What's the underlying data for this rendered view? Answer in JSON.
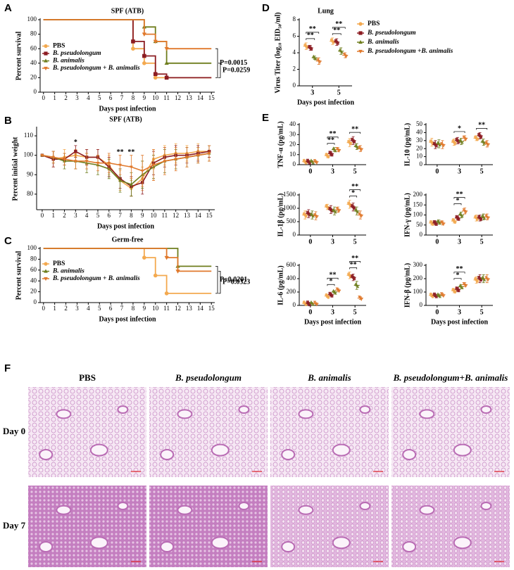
{
  "panel_labels": [
    "A",
    "B",
    "C",
    "D",
    "E",
    "F"
  ],
  "chart_data": [
    {
      "type": "step",
      "title": "SPF (ATB)",
      "xlabel": "Days post infection",
      "ylabel": "Percent survival",
      "x": [
        0,
        8,
        9,
        10,
        11,
        15
      ],
      "xlim": [
        -0.3,
        15.3
      ],
      "xticks": [
        0,
        1,
        2,
        3,
        4,
        5,
        6,
        7,
        8,
        9,
        10,
        11,
        12,
        13,
        14,
        15
      ],
      "ylim": [
        0,
        100
      ],
      "yticks": [
        0,
        20,
        40,
        60,
        80,
        100
      ],
      "legend": "lower left",
      "series": [
        {
          "name": "PBS",
          "color": "#f3a94f",
          "marker": "circle",
          "values": [
            100,
            60,
            40,
            20,
            20,
            20
          ]
        },
        {
          "name": "B. pseudolongum",
          "color": "#8c1c22",
          "marker": "square",
          "values": [
            100,
            70,
            50,
            25,
            20,
            20
          ]
        },
        {
          "name": "B. animalis",
          "color": "#6f7e1e",
          "marker": "triangle",
          "values": [
            100,
            100,
            90,
            70,
            40,
            40
          ]
        },
        {
          "name": "B. pseudolongum + B. animalis",
          "color": "#e0792c",
          "marker": "triangle-down",
          "values": [
            100,
            100,
            80,
            70,
            60,
            60
          ]
        }
      ],
      "p_values": [
        "P=0.0015",
        "P=0.0259"
      ]
    },
    {
      "type": "line",
      "title": "SPF (ATB)",
      "xlabel": "Days post infection",
      "ylabel": "Percent initial weight",
      "x": [
        0,
        1,
        2,
        3,
        4,
        5,
        6,
        7,
        8,
        9,
        10,
        11,
        12,
        13,
        14,
        15
      ],
      "xlim": [
        -0.5,
        15.5
      ],
      "xticks": [
        0,
        1,
        2,
        3,
        4,
        5,
        6,
        7,
        8,
        9,
        10,
        11,
        12,
        13,
        14,
        15
      ],
      "ylim": [
        72,
        114
      ],
      "yticks": [
        80,
        90,
        100,
        110
      ],
      "series": [
        {
          "name": "PBS",
          "color": "#f3a94f",
          "marker": "circle",
          "values": [
            100,
            98,
            99,
            100,
            99,
            99,
            95,
            87,
            83,
            88,
            98,
            100,
            101,
            101,
            102,
            102
          ],
          "errors": [
            0,
            4,
            4,
            3,
            4,
            4,
            5,
            5,
            4,
            6,
            5,
            5,
            5,
            4,
            4,
            3
          ]
        },
        {
          "name": "B. pseudolongum",
          "color": "#8c1c22",
          "marker": "square",
          "values": [
            100,
            98,
            98,
            102,
            99,
            99,
            94,
            88,
            84,
            86,
            96,
            99,
            100,
            100,
            101,
            102
          ],
          "errors": [
            0,
            4,
            3,
            3,
            4,
            4,
            5,
            5,
            5,
            6,
            6,
            5,
            5,
            4,
            4,
            3
          ]
        },
        {
          "name": "B. animalis",
          "color": "#6f7e1e",
          "marker": "triangle",
          "values": [
            100,
            99,
            97,
            97,
            96,
            95,
            93,
            87,
            85,
            90,
            94,
            97,
            98,
            99,
            100,
            101
          ],
          "errors": [
            0,
            3,
            4,
            4,
            5,
            5,
            5,
            6,
            6,
            7,
            6,
            6,
            5,
            5,
            4,
            4
          ]
        },
        {
          "name": "B. pseudolongum + B. animalis",
          "color": "#e0792c",
          "marker": "triangle-down",
          "values": [
            100,
            99,
            98,
            97,
            97,
            96,
            96,
            95,
            94,
            92,
            95,
            97,
            98,
            99,
            100,
            101
          ],
          "errors": [
            0,
            3,
            3,
            4,
            4,
            4,
            5,
            5,
            6,
            8,
            8,
            7,
            6,
            5,
            4,
            4
          ]
        }
      ],
      "annotations": [
        {
          "text": "*",
          "x": 3
        },
        {
          "text": "**",
          "x": 7
        },
        {
          "text": "**",
          "x": 8
        }
      ]
    },
    {
      "type": "step",
      "title": "Germ-free",
      "xlabel": "Days post infection",
      "ylabel": "Percent survival",
      "x": [
        0,
        9,
        10,
        11,
        12,
        15
      ],
      "xlim": [
        -0.3,
        15.3
      ],
      "xticks": [
        0,
        1,
        2,
        3,
        4,
        5,
        6,
        7,
        8,
        9,
        10,
        11,
        12,
        13,
        14,
        15
      ],
      "ylim": [
        0,
        100
      ],
      "yticks": [
        0,
        20,
        40,
        60,
        80,
        100
      ],
      "legend": "lower left",
      "series": [
        {
          "name": "PBS",
          "color": "#f3a94f",
          "marker": "circle",
          "values": [
            100,
            83,
            50,
            17,
            17,
            17
          ]
        },
        {
          "name": "B. animalis",
          "color": "#6f7e1e",
          "marker": "triangle",
          "values": [
            100,
            100,
            100,
            100,
            67,
            67
          ]
        },
        {
          "name": "B. pseudolongum + B. animalis",
          "color": "#e0792c",
          "marker": "triangle-down",
          "values": [
            100,
            100,
            100,
            83,
            58,
            58
          ]
        }
      ],
      "p_values": [
        "P=0.0201",
        "P=0.0323"
      ]
    },
    {
      "type": "dot",
      "title": "Lung",
      "xlabel": "Days post infection",
      "ylabel": "Virus Titer (log₁₀ EID₅₀/ml)",
      "categories": [
        "3",
        "5"
      ],
      "ylim": [
        0,
        8
      ],
      "yticks": [
        0,
        2,
        4,
        6,
        8
      ],
      "legend": "right",
      "series": [
        {
          "name": "PBS",
          "color": "#f3a94f",
          "marker": "circle",
          "values": [
            4.8,
            5.4
          ],
          "errors": [
            0.4,
            0.4
          ]
        },
        {
          "name": "B. pseudolongum",
          "color": "#8c1c22",
          "marker": "square",
          "values": [
            4.6,
            5.3
          ],
          "errors": [
            0.3,
            0.4
          ]
        },
        {
          "name": "B. animalis",
          "color": "#6f7e1e",
          "marker": "triangle",
          "values": [
            3.4,
            4.2
          ],
          "errors": [
            0.2,
            0.4
          ]
        },
        {
          "name": "B. pseudolongum +B. animalis",
          "color": "#e0792c",
          "marker": "triangle-down",
          "values": [
            3.0,
            3.7
          ],
          "errors": [
            0.4,
            0.3
          ]
        }
      ],
      "significance": [
        [
          "**",
          "**"
        ],
        [
          "**",
          "**"
        ]
      ]
    },
    {
      "type": "dot",
      "ylabel": "TNF-α (pg/mL)",
      "categories": [
        "0",
        "3",
        "5"
      ],
      "ylim": [
        0,
        40
      ],
      "yticks": [
        0,
        10,
        20,
        30,
        40
      ],
      "series": [
        {
          "name": "PBS",
          "color": "#f3a94f",
          "marker": "circle",
          "values": [
            3,
            9,
            22
          ],
          "errors": [
            1,
            2,
            4
          ]
        },
        {
          "name": "B. pseudolongum",
          "color": "#8c1c22",
          "marker": "square",
          "values": [
            3,
            11,
            24
          ],
          "errors": [
            1,
            2,
            4
          ]
        },
        {
          "name": "B. animalis",
          "color": "#6f7e1e",
          "marker": "triangle",
          "values": [
            3,
            15,
            18
          ],
          "errors": [
            1,
            2,
            3
          ]
        },
        {
          "name": "B. pseudolongum +B. animalis",
          "color": "#e0792c",
          "marker": "triangle-down",
          "values": [
            3,
            15,
            16
          ],
          "errors": [
            1,
            2,
            3
          ]
        }
      ],
      "significance": [
        [],
        [
          "**",
          "**"
        ],
        [
          "**"
        ]
      ]
    },
    {
      "type": "dot",
      "ylabel": "IL-10 (pg/mL)",
      "categories": [
        "0",
        "3",
        "5"
      ],
      "ylim": [
        0,
        50
      ],
      "yticks": [
        0,
        10,
        20,
        30,
        40,
        50
      ],
      "series": [
        {
          "name": "PBS",
          "color": "#f3a94f",
          "marker": "circle",
          "values": [
            28,
            28,
            33
          ],
          "errors": [
            5,
            4,
            3
          ]
        },
        {
          "name": "B. pseudolongum",
          "color": "#8c1c22",
          "marker": "square",
          "values": [
            25,
            30,
            36
          ],
          "errors": [
            5,
            4,
            4
          ]
        },
        {
          "name": "B. animalis",
          "color": "#6f7e1e",
          "marker": "triangle",
          "values": [
            26,
            29,
            28
          ],
          "errors": [
            5,
            4,
            4
          ]
        },
        {
          "name": "B. pseudolongum +B. animalis",
          "color": "#e0792c",
          "marker": "triangle-down",
          "values": [
            25,
            33,
            26
          ],
          "errors": [
            5,
            3,
            4
          ]
        }
      ],
      "significance": [
        [],
        [
          "*"
        ],
        [
          "**"
        ]
      ]
    },
    {
      "type": "dot",
      "ylabel": "IL-1β (pg/mL)",
      "categories": [
        "0",
        "3",
        "5"
      ],
      "ylim": [
        0,
        1500
      ],
      "yticks": [
        0,
        500,
        1000,
        1500
      ],
      "series": [
        {
          "name": "PBS",
          "color": "#f3a94f",
          "marker": "circle",
          "values": [
            750,
            1050,
            1150
          ],
          "errors": [
            150,
            100,
            150
          ]
        },
        {
          "name": "B. pseudolongum",
          "color": "#8c1c22",
          "marker": "square",
          "values": [
            800,
            950,
            1050
          ],
          "errors": [
            150,
            150,
            150
          ]
        },
        {
          "name": "B. animalis",
          "color": "#6f7e1e",
          "marker": "triangle",
          "values": [
            750,
            900,
            900
          ],
          "errors": [
            150,
            150,
            150
          ]
        },
        {
          "name": "B. pseudolongum +B. animalis",
          "color": "#e0792c",
          "marker": "triangle-down",
          "values": [
            720,
            950,
            750
          ],
          "errors": [
            150,
            100,
            150
          ]
        }
      ],
      "significance": [
        [],
        [],
        [
          "**",
          "*"
        ]
      ]
    },
    {
      "type": "dot",
      "ylabel": "IFN-γ (pg/mL)",
      "categories": [
        "0",
        "3",
        "5"
      ],
      "ylim": [
        0,
        200
      ],
      "yticks": [
        0,
        50,
        100,
        150,
        200
      ],
      "series": [
        {
          "name": "PBS",
          "color": "#f3a94f",
          "marker": "circle",
          "values": [
            60,
            70,
            85
          ],
          "errors": [
            10,
            10,
            15
          ]
        },
        {
          "name": "B. pseudolongum",
          "color": "#8c1c22",
          "marker": "square",
          "values": [
            60,
            85,
            85
          ],
          "errors": [
            10,
            10,
            15
          ]
        },
        {
          "name": "B. animalis",
          "color": "#6f7e1e",
          "marker": "triangle",
          "values": [
            65,
            100,
            90
          ],
          "errors": [
            10,
            15,
            15
          ]
        },
        {
          "name": "B. pseudolongum +B. animalis",
          "color": "#e0792c",
          "marker": "triangle-down",
          "values": [
            60,
            120,
            90
          ],
          "errors": [
            10,
            15,
            15
          ]
        }
      ],
      "significance": [
        [],
        [
          "**",
          "*"
        ],
        []
      ]
    },
    {
      "type": "dot",
      "ylabel": "IL-6 (pg/mL)",
      "xlabel": "Days post infection",
      "categories": [
        "0",
        "3",
        "5"
      ],
      "ylim": [
        0,
        600
      ],
      "yticks": [
        0,
        200,
        400,
        600
      ],
      "series": [
        {
          "name": "PBS",
          "color": "#f3a94f",
          "marker": "circle",
          "values": [
            30,
            140,
            450
          ],
          "errors": [
            10,
            20,
            50
          ]
        },
        {
          "name": "B. pseudolongum",
          "color": "#8c1c22",
          "marker": "square",
          "values": [
            30,
            160,
            420
          ],
          "errors": [
            10,
            20,
            50
          ]
        },
        {
          "name": "B. animalis",
          "color": "#6f7e1e",
          "marker": "triangle",
          "values": [
            30,
            200,
            300
          ],
          "errors": [
            10,
            20,
            60
          ]
        },
        {
          "name": "B. pseudolongum +B. animalis",
          "color": "#e0792c",
          "marker": "triangle-down",
          "values": [
            30,
            230,
            110
          ],
          "errors": [
            10,
            20,
            20
          ]
        }
      ],
      "significance": [
        [],
        [
          "**",
          "*"
        ],
        [
          "**",
          "**"
        ]
      ]
    },
    {
      "type": "dot",
      "ylabel": "IFN-β (pg/mL)",
      "xlabel": "Days post infection",
      "categories": [
        "0",
        "3",
        "5"
      ],
      "ylim": [
        0,
        300
      ],
      "yticks": [
        0,
        100,
        200,
        300
      ],
      "series": [
        {
          "name": "PBS",
          "color": "#f3a94f",
          "marker": "circle",
          "values": [
            75,
            110,
            190
          ],
          "errors": [
            10,
            15,
            25
          ]
        },
        {
          "name": "B. pseudolongum",
          "color": "#8c1c22",
          "marker": "square",
          "values": [
            75,
            120,
            200
          ],
          "errors": [
            10,
            15,
            30
          ]
        },
        {
          "name": "B. animalis",
          "color": "#6f7e1e",
          "marker": "triangle",
          "values": [
            75,
            140,
            200
          ],
          "errors": [
            10,
            15,
            30
          ]
        },
        {
          "name": "B. pseudolongum +B. animalis",
          "color": "#e0792c",
          "marker": "triangle-down",
          "values": [
            80,
            155,
            200
          ],
          "errors": [
            10,
            15,
            30
          ]
        }
      ],
      "significance": [
        [],
        [
          "**",
          "*"
        ],
        []
      ]
    }
  ],
  "histology": {
    "columns": [
      "PBS",
      "B. pseudolongum",
      "B. animalis",
      "B. pseudolongum+B. animalis"
    ],
    "rows": [
      "Day 0",
      "Day 7"
    ]
  }
}
